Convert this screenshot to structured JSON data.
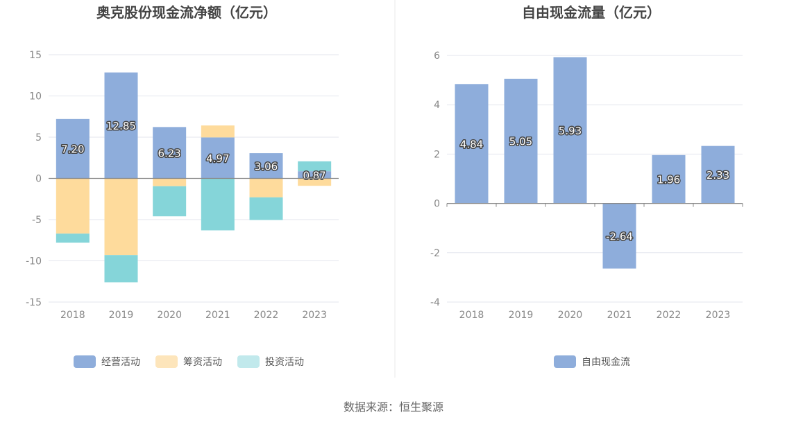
{
  "source_text": "数据来源：恒生聚源",
  "chart_data": [
    {
      "type": "bar",
      "stacked": true,
      "title": "奥克股份现金流净额（亿元）",
      "categories": [
        "2018",
        "2019",
        "2020",
        "2021",
        "2022",
        "2023"
      ],
      "ylim": [
        -15,
        15
      ],
      "yticks": [
        15,
        10,
        5,
        0,
        -5,
        -10,
        -15
      ],
      "grid": true,
      "legend_position": "bottom",
      "series": [
        {
          "name": "经营活动",
          "color": "#8eaddb",
          "values": [
            7.2,
            12.85,
            6.23,
            4.97,
            3.06,
            0.87
          ],
          "labels": [
            "7.20",
            "12.85",
            "6.23",
            "4.97",
            "3.06",
            "0.87"
          ]
        },
        {
          "name": "筹资活动",
          "color": "#fedb9c",
          "values": [
            -6.7,
            -9.3,
            -0.95,
            1.45,
            -2.3,
            -0.9
          ]
        },
        {
          "name": "投资活动",
          "color": "#85d5d9",
          "values": [
            -1.1,
            -3.3,
            -3.65,
            -6.3,
            -2.75,
            1.2
          ]
        }
      ],
      "legend_colors": [
        "#8eaddb",
        "#fde5bb",
        "#c1e9ec"
      ]
    },
    {
      "type": "bar",
      "title": "自由现金流量（亿元）",
      "categories": [
        "2018",
        "2019",
        "2020",
        "2021",
        "2022",
        "2023"
      ],
      "ylim": [
        -4,
        6
      ],
      "yticks": [
        6,
        4,
        2,
        0,
        -2,
        -4
      ],
      "grid": true,
      "legend_position": "bottom",
      "series": [
        {
          "name": "自由现金流",
          "color": "#8eaddb",
          "values": [
            4.84,
            5.05,
            5.93,
            -2.64,
            1.96,
            2.33
          ],
          "labels": [
            "4.84",
            "5.05",
            "5.93",
            "-2.64",
            "1.96",
            "2.33"
          ]
        }
      ]
    }
  ]
}
